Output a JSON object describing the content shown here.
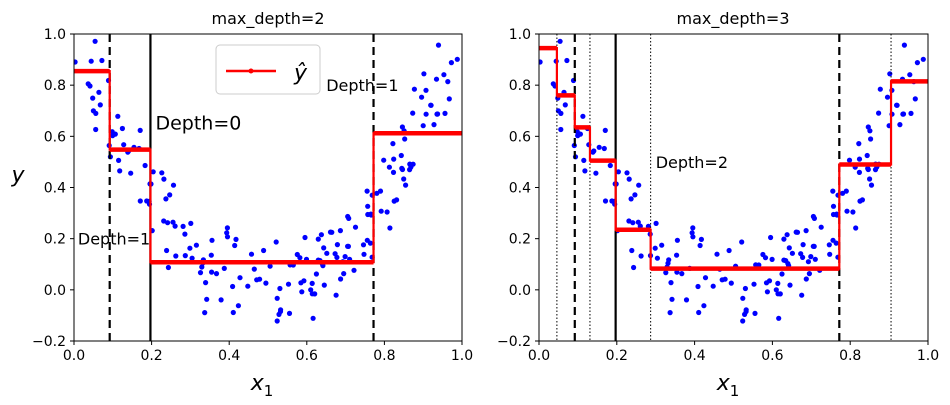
{
  "chart_data": [
    {
      "type": "scatter",
      "title": "max_depth=2",
      "xlabel": "x",
      "xlabel_sub": "1",
      "ylabel": "y",
      "xlim": [
        0,
        1
      ],
      "ylim": [
        -0.2,
        1.0
      ],
      "xticks": [
        "0.0",
        "0.2",
        "0.4",
        "0.6",
        "0.8",
        "1.0"
      ],
      "yticks": [
        "−0.2",
        "0.0",
        "0.2",
        "0.4",
        "0.6",
        "0.8",
        "1.0"
      ],
      "legend": {
        "label": "ŷ",
        "placement": "top-center"
      },
      "prediction_steps": [
        {
          "x0": 0.0,
          "x1": 0.092,
          "y": 0.855
        },
        {
          "x0": 0.092,
          "x1": 0.197,
          "y": 0.548
        },
        {
          "x0": 0.197,
          "x1": 0.772,
          "y": 0.108
        },
        {
          "x0": 0.772,
          "x1": 1.0,
          "y": 0.612
        }
      ],
      "split_lines": [
        {
          "x": 0.197,
          "style": "solid",
          "label": "Depth=0"
        },
        {
          "x": 0.092,
          "style": "dashed",
          "label": "Depth=1"
        },
        {
          "x": 0.772,
          "style": "dashed",
          "label": "Depth=1"
        }
      ],
      "annotations": [
        {
          "text": "Depth=0",
          "x": 0.21,
          "y": 0.65
        },
        {
          "text": "Depth=1",
          "x": 0.01,
          "y": 0.2
        },
        {
          "text": "Depth=1",
          "x": 0.65,
          "y": 0.8
        }
      ]
    },
    {
      "type": "scatter",
      "title": "max_depth=3",
      "xlabel": "x",
      "xlabel_sub": "1",
      "ylabel": "",
      "xlim": [
        0,
        1
      ],
      "ylim": [
        -0.2,
        1.0
      ],
      "xticks": [
        "0.0",
        "0.2",
        "0.4",
        "0.6",
        "0.8",
        "1.0"
      ],
      "yticks": [
        "−0.2",
        "0.0",
        "0.2",
        "0.4",
        "0.6",
        "0.8",
        "1.0"
      ],
      "prediction_steps": [
        {
          "x0": 0.0,
          "x1": 0.046,
          "y": 0.945
        },
        {
          "x0": 0.046,
          "x1": 0.092,
          "y": 0.76
        },
        {
          "x0": 0.092,
          "x1": 0.131,
          "y": 0.635
        },
        {
          "x0": 0.131,
          "x1": 0.197,
          "y": 0.505
        },
        {
          "x0": 0.197,
          "x1": 0.287,
          "y": 0.235
        },
        {
          "x0": 0.287,
          "x1": 0.772,
          "y": 0.083
        },
        {
          "x0": 0.772,
          "x1": 0.905,
          "y": 0.49
        },
        {
          "x0": 0.905,
          "x1": 1.0,
          "y": 0.815
        }
      ],
      "split_lines": [
        {
          "x": 0.197,
          "style": "solid"
        },
        {
          "x": 0.092,
          "style": "dashed"
        },
        {
          "x": 0.772,
          "style": "dashed"
        },
        {
          "x": 0.046,
          "style": "dotted"
        },
        {
          "x": 0.131,
          "style": "dotted"
        },
        {
          "x": 0.287,
          "style": "dotted"
        },
        {
          "x": 0.905,
          "style": "dotted"
        }
      ],
      "annotations": [
        {
          "text": "Depth=2",
          "x": 0.3,
          "y": 0.5
        }
      ]
    }
  ],
  "colors": {
    "points": "#0000ff",
    "prediction": "#ff0000",
    "splits": "#000000"
  }
}
